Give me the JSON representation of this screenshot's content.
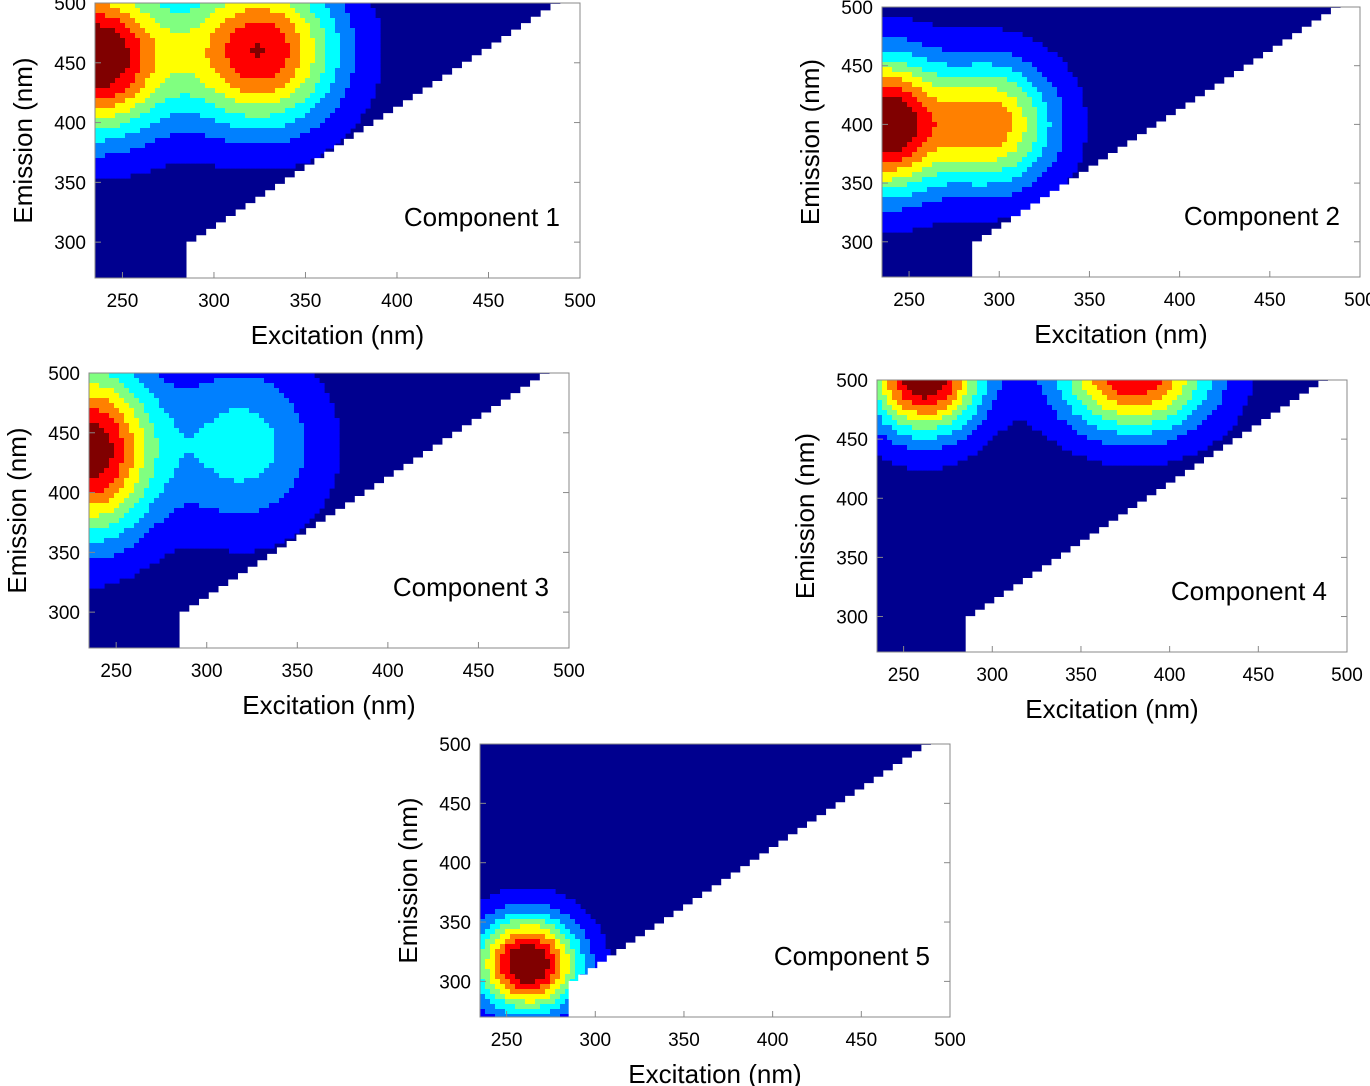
{
  "colors": {
    "background": "#00008f",
    "colormap": [
      "#00008f",
      "#0000ff",
      "#0080ff",
      "#00ffff",
      "#80ff80",
      "#ffff00",
      "#ff8000",
      "#ff0000",
      "#800000"
    ]
  },
  "chart_data": [
    {
      "type": "heatmap",
      "title": "Component 1",
      "xlabel": "Excitation (nm)",
      "ylabel": "Emission (nm)",
      "xlim": [
        235,
        500
      ],
      "ylim": [
        270,
        500
      ],
      "xticks": [
        250,
        300,
        350,
        400,
        450,
        500
      ],
      "yticks": [
        300,
        350,
        400,
        450,
        500
      ],
      "masked_region": "emission below excitation",
      "peaks": [
        {
          "excitation": 235,
          "emission": 455,
          "intensity": 1.0,
          "sx": 28,
          "sy": 45
        },
        {
          "excitation": 325,
          "emission": 460,
          "intensity": 0.85,
          "sx": 30,
          "sy": 45
        }
      ]
    },
    {
      "type": "heatmap",
      "title": "Component 2",
      "xlabel": "Excitation (nm)",
      "ylabel": "Emission (nm)",
      "xlim": [
        235,
        500
      ],
      "ylim": [
        270,
        500
      ],
      "xticks": [
        250,
        300,
        350,
        400,
        450,
        500
      ],
      "yticks": [
        300,
        350,
        400,
        450,
        500
      ],
      "masked_region": "emission below excitation",
      "peaks": [
        {
          "excitation": 235,
          "emission": 400,
          "intensity": 1.0,
          "sx": 22,
          "sy": 40
        },
        {
          "excitation": 295,
          "emission": 400,
          "intensity": 0.7,
          "sx": 25,
          "sy": 38
        }
      ]
    },
    {
      "type": "heatmap",
      "title": "Component 3",
      "xlabel": "Excitation (nm)",
      "ylabel": "Emission (nm)",
      "xlim": [
        235,
        500
      ],
      "ylim": [
        270,
        500
      ],
      "xticks": [
        250,
        300,
        350,
        400,
        450,
        500
      ],
      "yticks": [
        300,
        350,
        400,
        450,
        500
      ],
      "masked_region": "emission below excitation",
      "peaks": [
        {
          "excitation": 235,
          "emission": 435,
          "intensity": 0.95,
          "sx": 25,
          "sy": 50
        },
        {
          "excitation": 320,
          "emission": 440,
          "intensity": 0.35,
          "sx": 30,
          "sy": 50
        }
      ]
    },
    {
      "type": "heatmap",
      "title": "Component 4",
      "xlabel": "Excitation (nm)",
      "ylabel": "Emission (nm)",
      "xlim": [
        235,
        500
      ],
      "ylim": [
        270,
        500
      ],
      "xticks": [
        250,
        300,
        350,
        400,
        450,
        500
      ],
      "yticks": [
        300,
        350,
        400,
        450,
        500
      ],
      "masked_region": "emission below excitation",
      "peaks": [
        {
          "excitation": 262,
          "emission": 505,
          "intensity": 1.0,
          "sx": 22,
          "sy": 35
        },
        {
          "excitation": 380,
          "emission": 505,
          "intensity": 0.85,
          "sx": 30,
          "sy": 35
        }
      ]
    },
    {
      "type": "heatmap",
      "title": "Component 5",
      "xlabel": "Excitation (nm)",
      "ylabel": "Emission (nm)",
      "xlim": [
        235,
        500
      ],
      "ylim": [
        270,
        500
      ],
      "xticks": [
        250,
        300,
        350,
        400,
        450,
        500
      ],
      "yticks": [
        300,
        350,
        400,
        450,
        500
      ],
      "masked_region": "emission below excitation",
      "peaks": [
        {
          "excitation": 262,
          "emission": 315,
          "intensity": 1.0,
          "sx": 20,
          "sy": 28
        }
      ]
    }
  ]
}
